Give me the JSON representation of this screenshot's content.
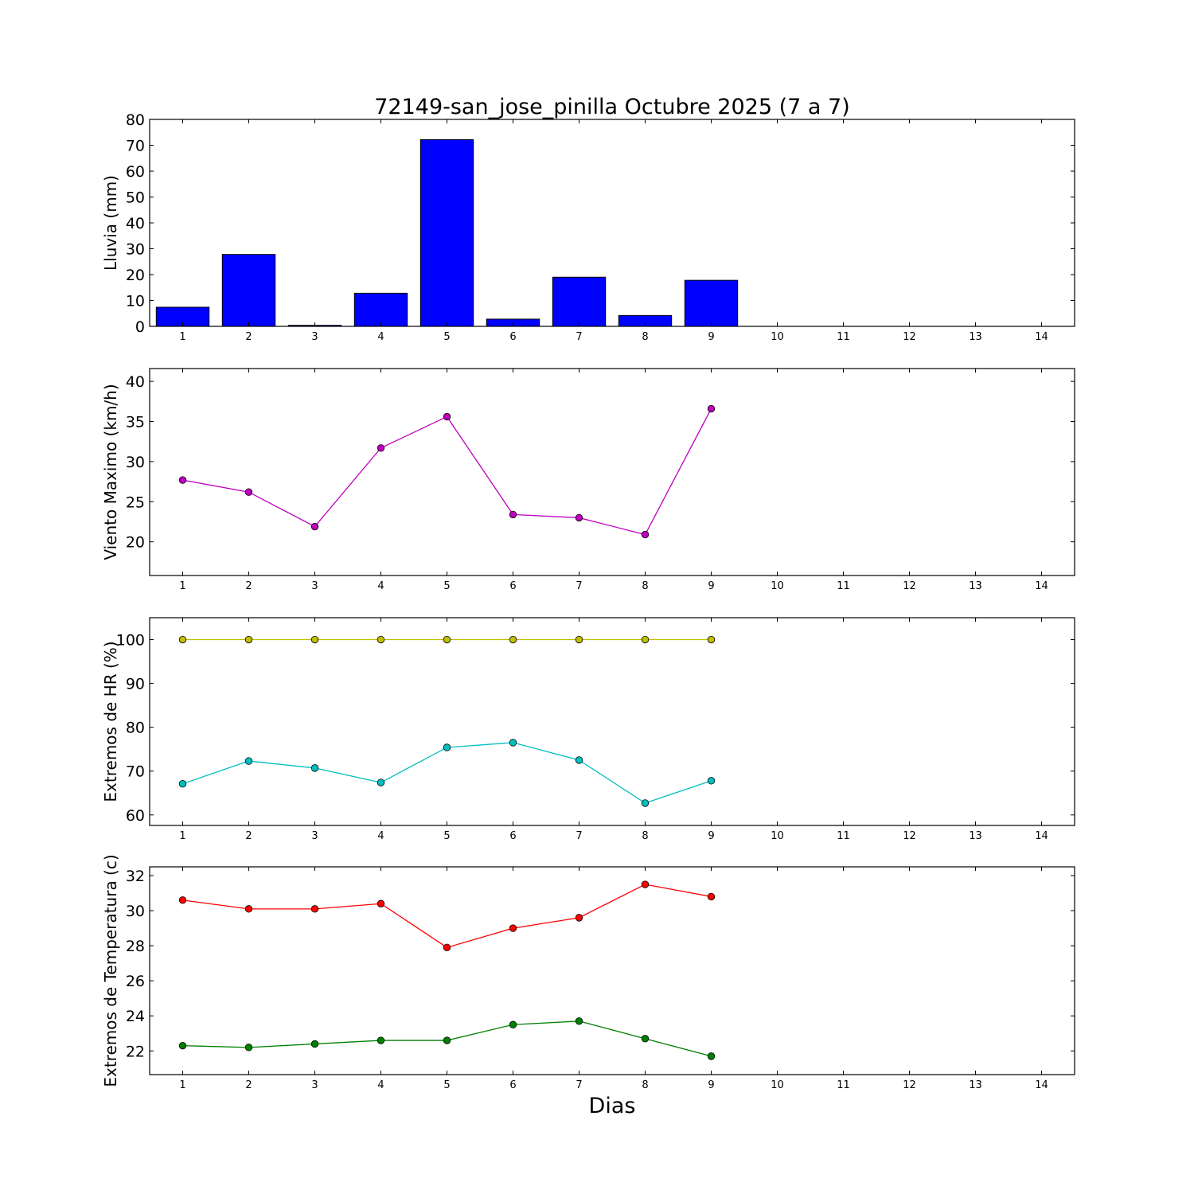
{
  "chart_data": {
    "title": "72149-san_jose_pinilla Octubre 2025  (7 a 7)",
    "xlabel": "Dias",
    "x_ticks": [
      1,
      2,
      3,
      4,
      5,
      6,
      7,
      8,
      9,
      10,
      11,
      12,
      13,
      14
    ],
    "xlim": [
      0.5,
      14.5
    ],
    "panels": [
      {
        "type": "bar",
        "ylabel": "Lluvia (mm)",
        "ylim": [
          0,
          80
        ],
        "yticks": [
          0,
          10,
          20,
          30,
          40,
          50,
          60,
          70,
          80
        ],
        "series": [
          {
            "color": "#0000ff",
            "x": [
              1,
              2,
              3,
              4,
              5,
              6,
              7,
              8,
              9
            ],
            "values": [
              7.4,
              27.8,
              0.4,
              12.8,
              72.2,
              2.8,
              19.0,
              4.2,
              17.8
            ]
          }
        ]
      },
      {
        "type": "line",
        "ylabel": "Viento Maximo (km/h)",
        "ylim": [
          15.8,
          41.6
        ],
        "yticks": [
          20,
          25,
          30,
          35,
          40
        ],
        "series": [
          {
            "color": "#bf00bf",
            "x": [
              1,
              2,
              3,
              4,
              5,
              6,
              7,
              8,
              9
            ],
            "values": [
              27.7,
              26.2,
              21.9,
              31.7,
              35.6,
              23.4,
              23.0,
              20.9,
              36.6
            ]
          }
        ]
      },
      {
        "type": "line",
        "ylabel": "Extremos de HR (%)",
        "ylim": [
          57.6,
          105
        ],
        "yticks": [
          60,
          70,
          80,
          90,
          100
        ],
        "series": [
          {
            "color": "#bfbf00",
            "x": [
              1,
              2,
              3,
              4,
              5,
              6,
              7,
              8,
              9
            ],
            "values": [
              100,
              100,
              100,
              100,
              100,
              100,
              100,
              100,
              100
            ]
          },
          {
            "color": "#00bfbf",
            "x": [
              1,
              2,
              3,
              4,
              5,
              6,
              7,
              8,
              9
            ],
            "values": [
              67.1,
              72.3,
              70.7,
              67.4,
              75.4,
              76.5,
              72.5,
              62.7,
              67.8
            ]
          }
        ]
      },
      {
        "type": "line",
        "ylabel": "Extremos de Temperatura (c)",
        "ylim": [
          20.65,
          32.5
        ],
        "yticks": [
          22,
          24,
          26,
          28,
          30,
          32
        ],
        "series": [
          {
            "color": "#ff0000",
            "x": [
              1,
              2,
              3,
              4,
              5,
              6,
              7,
              8,
              9
            ],
            "values": [
              30.6,
              30.1,
              30.1,
              30.4,
              27.9,
              29.0,
              29.6,
              31.5,
              30.8
            ]
          },
          {
            "color": "#008000",
            "x": [
              1,
              2,
              3,
              4,
              5,
              6,
              7,
              8,
              9
            ],
            "values": [
              22.3,
              22.2,
              22.4,
              22.6,
              22.6,
              23.5,
              23.7,
              22.7,
              21.7
            ]
          }
        ]
      }
    ]
  }
}
